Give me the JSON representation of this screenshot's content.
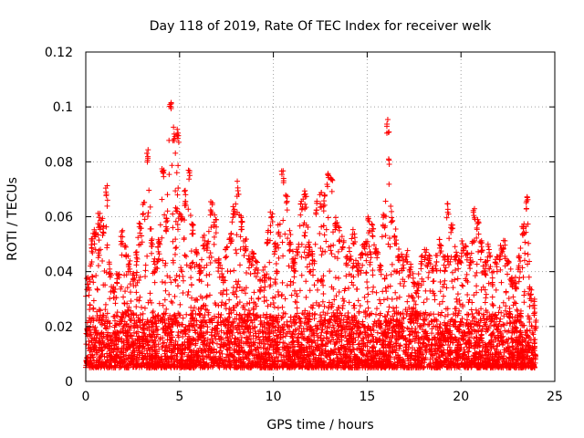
{
  "chart_data": {
    "type": "scatter",
    "title": "Day 118 of 2019, Rate Of TEC Index for receiver welk",
    "xlabel": "GPS time / hours",
    "ylabel": "ROTI / TECUs",
    "xlim": [
      0,
      25
    ],
    "ylim": [
      0,
      0.12
    ],
    "x_ticks": [
      0,
      5,
      10,
      15,
      20,
      25
    ],
    "x_tick_labels": [
      "0",
      "5",
      "10",
      "15",
      "20",
      "25"
    ],
    "y_ticks": [
      0,
      0.02,
      0.04,
      0.06,
      0.08,
      0.1,
      0.12
    ],
    "y_tick_labels": [
      "0",
      "0.02",
      "0.04",
      "0.06",
      "0.08",
      "0.1",
      "0.12"
    ],
    "grid": true,
    "marker": "plus",
    "color": "#ff0000",
    "data_range_x": [
      0,
      24
    ],
    "series": [
      {
        "name": "ROTI",
        "x": [
          0.1,
          0.3,
          0.5,
          0.7,
          0.9,
          1.1,
          1.3,
          1.5,
          1.7,
          1.9,
          2.1,
          2.3,
          2.5,
          2.7,
          2.9,
          3.1,
          3.3,
          3.5,
          3.7,
          3.9,
          4.1,
          4.3,
          4.5,
          4.7,
          4.9,
          5.1,
          5.3,
          5.5,
          5.7,
          5.9,
          6.1,
          6.3,
          6.5,
          6.7,
          6.9,
          7.1,
          7.3,
          7.5,
          7.7,
          7.9,
          8.1,
          8.3,
          8.5,
          8.7,
          8.9,
          9.1,
          9.3,
          9.5,
          9.7,
          9.9,
          10.1,
          10.3,
          10.5,
          10.7,
          10.9,
          11.1,
          11.3,
          11.5,
          11.7,
          11.9,
          12.1,
          12.3,
          12.5,
          12.7,
          12.9,
          13.1,
          13.3,
          13.5,
          13.7,
          13.9,
          14.1,
          14.3,
          14.5,
          14.7,
          14.9,
          15.1,
          15.3,
          15.5,
          15.7,
          15.9,
          16.1,
          16.3,
          16.5,
          16.7,
          16.9,
          17.1,
          17.3,
          17.5,
          17.7,
          17.9,
          18.1,
          18.3,
          18.5,
          18.7,
          18.9,
          19.1,
          19.3,
          19.5,
          19.7,
          19.9,
          20.1,
          20.3,
          20.5,
          20.7,
          20.9,
          21.1,
          21.3,
          21.5,
          21.7,
          21.9,
          22.1,
          22.3,
          22.5,
          22.7,
          22.9,
          23.1,
          23.3,
          23.5,
          23.7,
          23.9
        ],
        "y": [
          0.038,
          0.052,
          0.058,
          0.062,
          0.06,
          0.072,
          0.044,
          0.036,
          0.041,
          0.055,
          0.05,
          0.046,
          0.04,
          0.048,
          0.06,
          0.066,
          0.085,
          0.055,
          0.045,
          0.052,
          0.078,
          0.06,
          0.105,
          0.093,
          0.092,
          0.062,
          0.07,
          0.079,
          0.059,
          0.048,
          0.044,
          0.054,
          0.052,
          0.067,
          0.062,
          0.046,
          0.04,
          0.05,
          0.056,
          0.065,
          0.073,
          0.06,
          0.052,
          0.046,
          0.048,
          0.044,
          0.038,
          0.042,
          0.055,
          0.062,
          0.052,
          0.058,
          0.078,
          0.07,
          0.055,
          0.046,
          0.05,
          0.066,
          0.07,
          0.052,
          0.048,
          0.066,
          0.069,
          0.068,
          0.076,
          0.075,
          0.06,
          0.057,
          0.054,
          0.047,
          0.05,
          0.056,
          0.044,
          0.05,
          0.052,
          0.06,
          0.058,
          0.05,
          0.044,
          0.062,
          0.096,
          0.064,
          0.056,
          0.05,
          0.046,
          0.048,
          0.044,
          0.04,
          0.038,
          0.046,
          0.05,
          0.046,
          0.042,
          0.046,
          0.052,
          0.046,
          0.065,
          0.06,
          0.05,
          0.046,
          0.052,
          0.05,
          0.048,
          0.063,
          0.06,
          0.052,
          0.044,
          0.05,
          0.04,
          0.046,
          0.05,
          0.052,
          0.044,
          0.04,
          0.038,
          0.046,
          0.058,
          0.068,
          0.036,
          0.03
        ],
        "baseline_band": [
          0.005,
          0.025
        ]
      }
    ]
  }
}
